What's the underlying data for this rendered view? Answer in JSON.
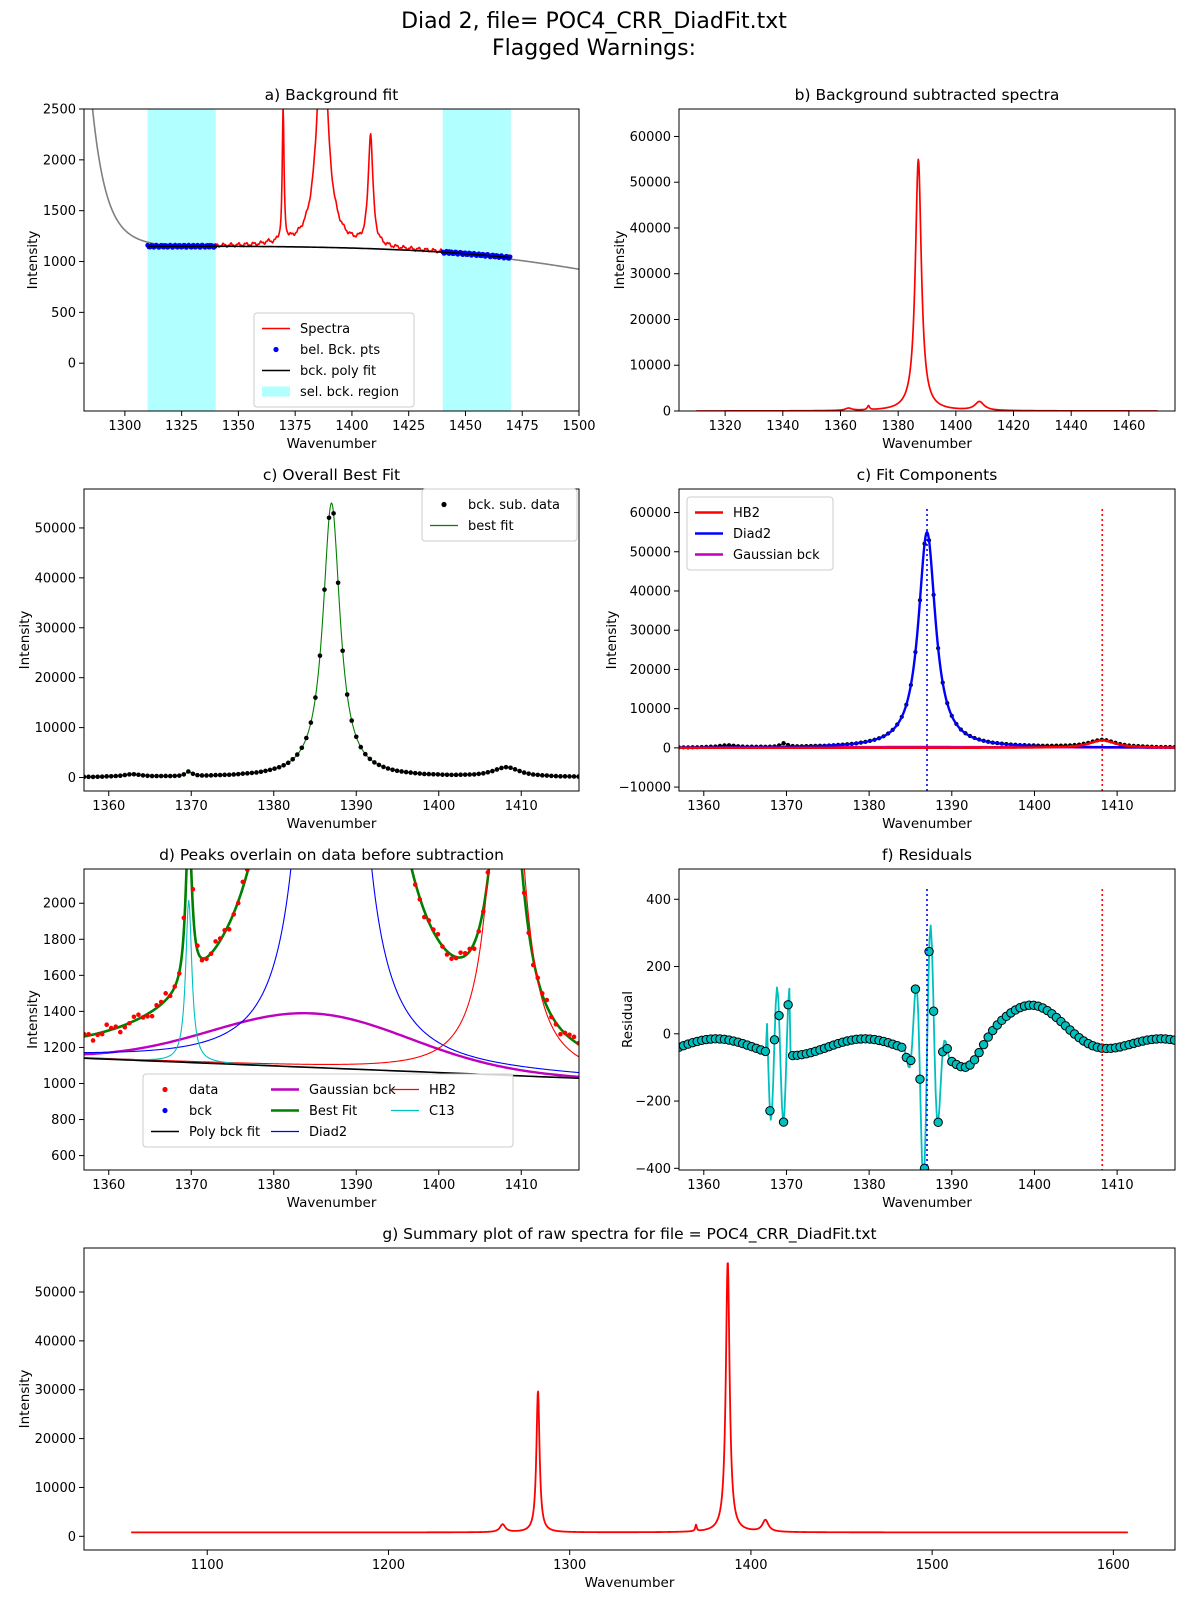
{
  "figure": {
    "title_line1": "Diad 2, file= POC4_CRR_DiadFit.txt",
    "title_line2": "Flagged Warnings:"
  },
  "colors": {
    "spectra": "#ff0000",
    "bck_pts": "#0000ff",
    "poly": "#000000",
    "region": "#b2ffff",
    "raw": "#808080",
    "best_fit_a": "#008000",
    "best_fit_d": "#008000",
    "gauss": "#bf00bf",
    "diad2": "#0000ff",
    "hb2": "#ff0000",
    "c13": "#00bfbf",
    "resid": "#00bfbf"
  },
  "chart_data": [
    {
      "id": "a",
      "type": "line",
      "title": "a) Background fit",
      "xlabel": "Wavenumber",
      "ylabel": "Intensity",
      "xlim": [
        1282,
        1500
      ],
      "ylim": [
        -470,
        2500
      ],
      "xticks": [
        "1300",
        "1325",
        "1350",
        "1375",
        "1400",
        "1425",
        "1450",
        "1475",
        "1500"
      ],
      "yticks": [
        "0",
        "500",
        "1000",
        "1500",
        "2000",
        "2500"
      ],
      "regions": [
        [
          1310,
          1340
        ],
        [
          1440,
          1470
        ]
      ],
      "legend": [
        "Spectra",
        "bel. Bck. pts",
        "bck. poly fit",
        "sel. bck. region"
      ]
    },
    {
      "id": "b",
      "type": "line",
      "title": "b) Background subtracted spectra",
      "xlabel": "Wavenumber",
      "ylabel": "Intensity",
      "xlim": [
        1304,
        1476
      ],
      "ylim": [
        0,
        66000
      ],
      "xticks": [
        "1320",
        "1340",
        "1360",
        "1380",
        "1400",
        "1420",
        "1440",
        "1460"
      ],
      "yticks": [
        "0",
        "10000",
        "20000",
        "30000",
        "40000",
        "50000",
        "60000"
      ]
    },
    {
      "id": "c",
      "type": "line",
      "title": "c) Overall Best Fit",
      "xlabel": "Wavenumber",
      "ylabel": "Intensity",
      "xlim": [
        1357,
        1417
      ],
      "ylim": [
        -2700,
        57800
      ],
      "xticks": [
        "1360",
        "1370",
        "1380",
        "1390",
        "1400",
        "1410"
      ],
      "yticks": [
        "0",
        "10000",
        "20000",
        "30000",
        "40000",
        "50000"
      ],
      "legend": [
        "bck. sub. data",
        "best fit"
      ]
    },
    {
      "id": "c2",
      "type": "line",
      "title": "c) Fit Components",
      "xlabel": "Wavenumber",
      "ylabel": "Intensity",
      "xlim": [
        1357,
        1417
      ],
      "ylim": [
        -11000,
        66000
      ],
      "xticks": [
        "1360",
        "1370",
        "1380",
        "1390",
        "1400",
        "1410"
      ],
      "yticks": [
        "−10000",
        "0",
        "10000",
        "20000",
        "30000",
        "40000",
        "50000",
        "60000"
      ],
      "legend": [
        "HB2",
        "Diad2",
        "Gaussian bck"
      ],
      "vlines": [
        1387.0,
        1408.2
      ]
    },
    {
      "id": "d",
      "type": "line",
      "title": "d) Peaks overlain on data before subtraction",
      "xlabel": "Wavenumber",
      "ylabel": "Intensity",
      "xlim": [
        1357,
        1417
      ],
      "ylim": [
        520,
        2190
      ],
      "xticks": [
        "1360",
        "1370",
        "1380",
        "1390",
        "1400",
        "1410"
      ],
      "yticks": [
        "600",
        "800",
        "1000",
        "1200",
        "1400",
        "1600",
        "1800",
        "2000"
      ],
      "legend": [
        "data",
        "bck",
        "Poly bck fit",
        "Gaussian bck",
        "Best Fit",
        "Diad2",
        "HB2",
        "C13"
      ]
    },
    {
      "id": "f",
      "type": "line",
      "title": "f) Residuals",
      "xlabel": "Wavenumber",
      "ylabel": "Residual",
      "xlim": [
        1357,
        1417
      ],
      "ylim": [
        -405,
        490
      ],
      "xticks": [
        "1360",
        "1370",
        "1380",
        "1390",
        "1400",
        "1410"
      ],
      "yticks": [
        "−400",
        "−200",
        "0",
        "200",
        "400"
      ],
      "vlines": [
        1387.0,
        1408.2
      ]
    },
    {
      "id": "g",
      "type": "line",
      "title": "g) Summary plot of raw spectra for file = POC4_CRR_DiadFit.txt",
      "xlabel": "Wavenumber",
      "ylabel": "Intensity",
      "xlim": [
        1032,
        1634
      ],
      "ylim": [
        -2800,
        59000
      ],
      "xticks": [
        "1100",
        "1200",
        "1300",
        "1400",
        "1500",
        "1600"
      ],
      "yticks": [
        "0",
        "10000",
        "20000",
        "30000",
        "40000",
        "50000"
      ]
    }
  ]
}
